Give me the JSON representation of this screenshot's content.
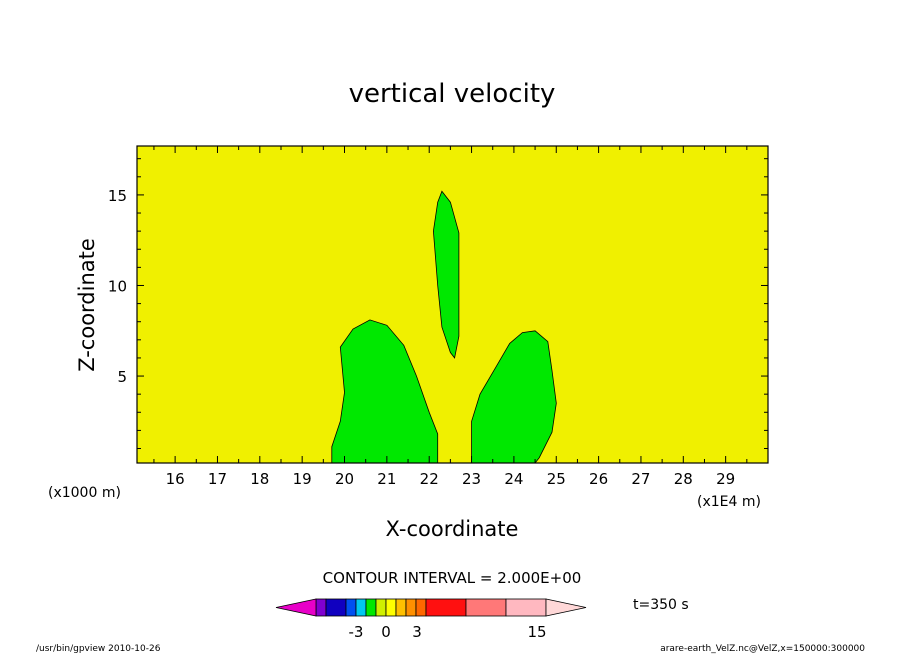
{
  "chart_data": {
    "type": "contour",
    "title": "vertical velocity",
    "xlabel": "X-coordinate",
    "ylabel": "Z-coordinate",
    "x_scale_label": "(x1E4 m)",
    "y_scale_label": "(x1000 m)",
    "xlim": [
      15.1,
      30.0
    ],
    "ylim": [
      0.2,
      17.7
    ],
    "x_ticks": [
      "16",
      "17",
      "18",
      "19",
      "20",
      "21",
      "22",
      "23",
      "24",
      "25",
      "26",
      "27",
      "28",
      "29"
    ],
    "y_ticks": [
      "5",
      "10",
      "15"
    ],
    "background_level_color": "#f0f000",
    "region_color": "#00e800",
    "regions": [
      {
        "name": "left-plume",
        "points": [
          [
            19.7,
            0.2
          ],
          [
            19.7,
            1.1
          ],
          [
            19.9,
            2.5
          ],
          [
            20.0,
            4.1
          ],
          [
            19.9,
            6.6
          ],
          [
            20.2,
            7.6
          ],
          [
            20.6,
            8.1
          ],
          [
            21.0,
            7.8
          ],
          [
            21.4,
            6.7
          ],
          [
            21.7,
            5.0
          ],
          [
            22.0,
            3.0
          ],
          [
            22.2,
            1.8
          ],
          [
            22.2,
            0.2
          ]
        ]
      },
      {
        "name": "center-column",
        "points": [
          [
            22.3,
            15.2
          ],
          [
            22.5,
            14.6
          ],
          [
            22.7,
            12.9
          ],
          [
            22.7,
            10.0
          ],
          [
            22.7,
            7.2
          ],
          [
            22.6,
            6.0
          ],
          [
            22.5,
            6.3
          ],
          [
            22.3,
            7.7
          ],
          [
            22.2,
            10.0
          ],
          [
            22.1,
            13.0
          ],
          [
            22.2,
            14.6
          ]
        ]
      },
      {
        "name": "right-plume",
        "points": [
          [
            23.0,
            0.2
          ],
          [
            23.0,
            2.5
          ],
          [
            23.2,
            4.0
          ],
          [
            23.6,
            5.6
          ],
          [
            23.9,
            6.8
          ],
          [
            24.2,
            7.4
          ],
          [
            24.5,
            7.5
          ],
          [
            24.8,
            6.9
          ],
          [
            24.9,
            5.3
          ],
          [
            25.0,
            3.5
          ],
          [
            24.9,
            1.9
          ],
          [
            24.6,
            0.5
          ],
          [
            24.5,
            0.2
          ]
        ]
      }
    ],
    "contour_interval_text": "CONTOUR INTERVAL = 2.000E+00",
    "colorbar": {
      "colors": [
        "#e800c8",
        "#8000d0",
        "#1000c0",
        "#0050f0",
        "#00c8f0",
        "#00e800",
        "#d0f000",
        "#ffff00",
        "#ffc000",
        "#ff9000",
        "#ff6800",
        "#ff1010",
        "#ff7878",
        "#ffb8c0",
        "#ffd8d8"
      ],
      "tick_labels": [
        "-3",
        "0",
        "3",
        "15"
      ]
    },
    "time_label": "t=350 s"
  },
  "footer": {
    "left": "/usr/bin/gpview   2010-10-26",
    "right": "arare-earth_VelZ.nc@VelZ,x=150000:300000"
  }
}
